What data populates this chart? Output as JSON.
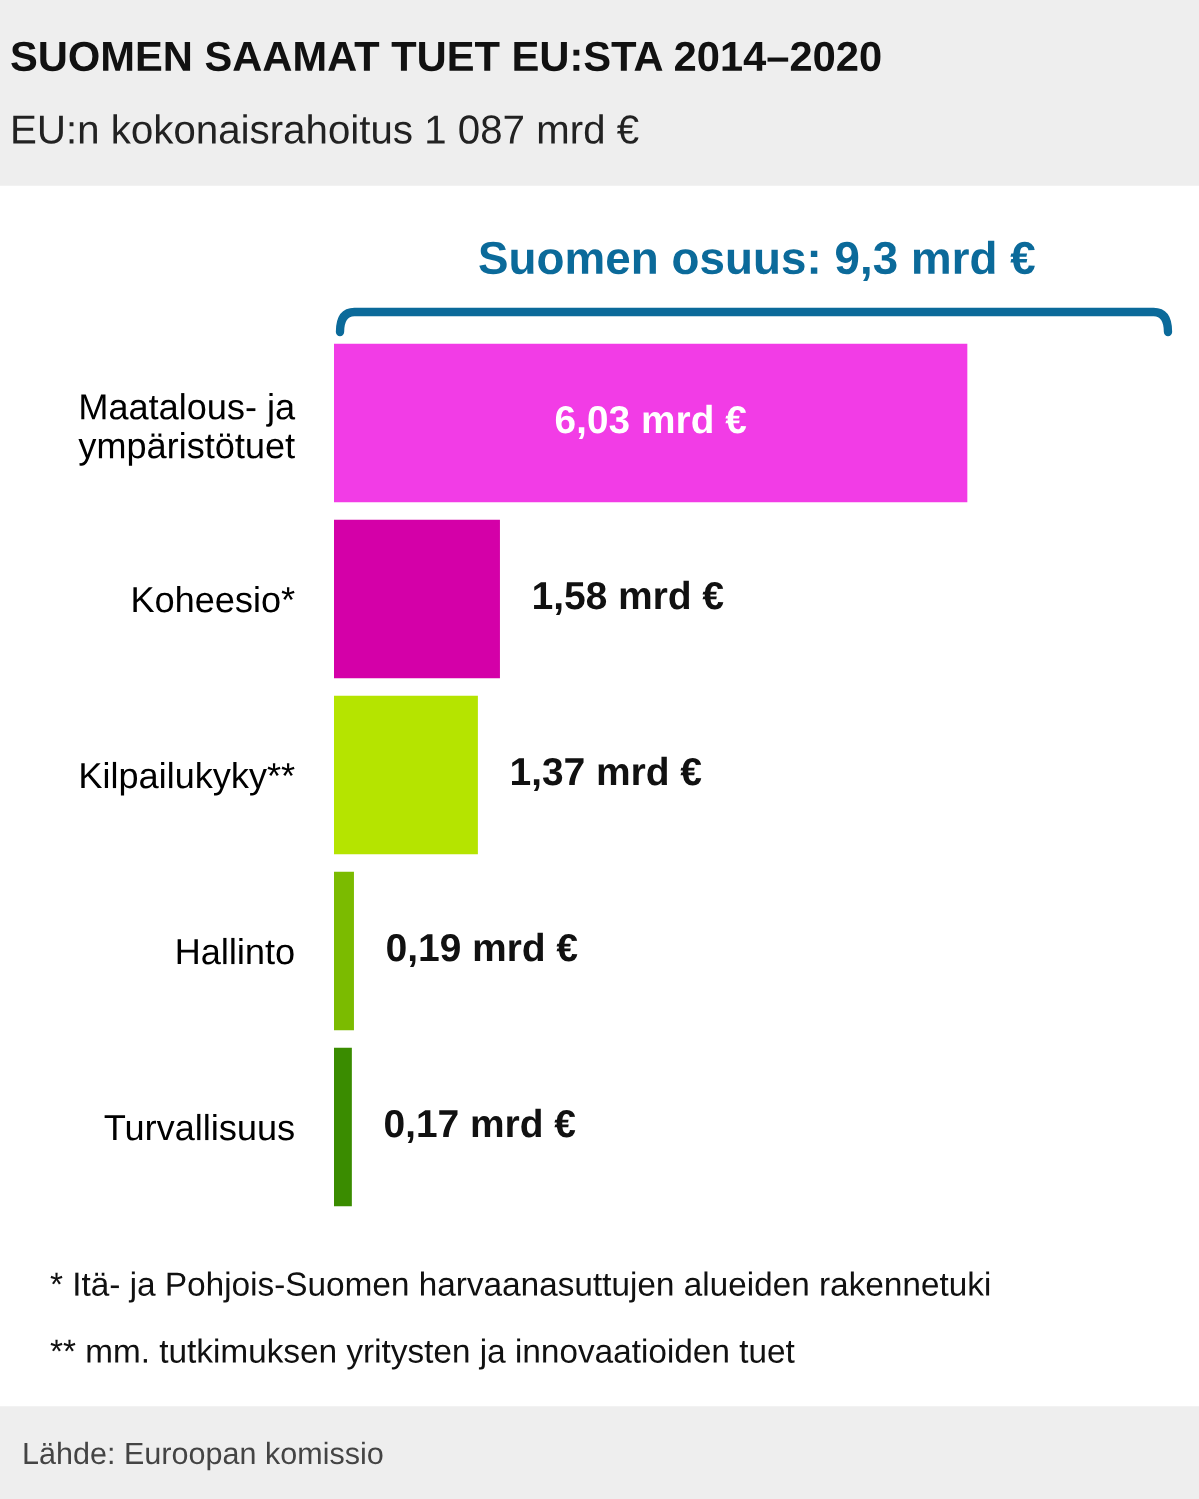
{
  "chart_data": {
    "type": "bar",
    "orientation": "horizontal",
    "title": "SUOMEN SAAMAT TUET EU:STA 2014–2020",
    "subtitle": "EU:n kokonaisrahoitus 1 087 mrd €",
    "categories": [
      "Maatalous- ja\nympäristötuet",
      "Koheesio*",
      "Kilpailukyky**",
      "Hallinto",
      "Turvallisuus"
    ],
    "values": [
      6.03,
      1.58,
      1.37,
      0.19,
      0.17
    ],
    "colors": [
      "#f23ce6",
      "#d400a8",
      "#b5e400",
      "#7bbb00",
      "#3a8c00"
    ],
    "value_labels": [
      "6,03 mrd €",
      "1,58 mrd €",
      "1,37 mrd €",
      "0,19 mrd €",
      "0,17 mrd €"
    ],
    "annotations": [
      "Suomen osuus: 9,3 mrd €",
      "* Itä- ja Pohjois-Suomen harvaanasuttujen alueiden rakennetuki",
      "** mm. tutkimuksen yritysten ja innovaatioiden tuet",
      "Lähde: Euroopan komissio"
    ],
    "grid": false,
    "legend": false
  }
}
